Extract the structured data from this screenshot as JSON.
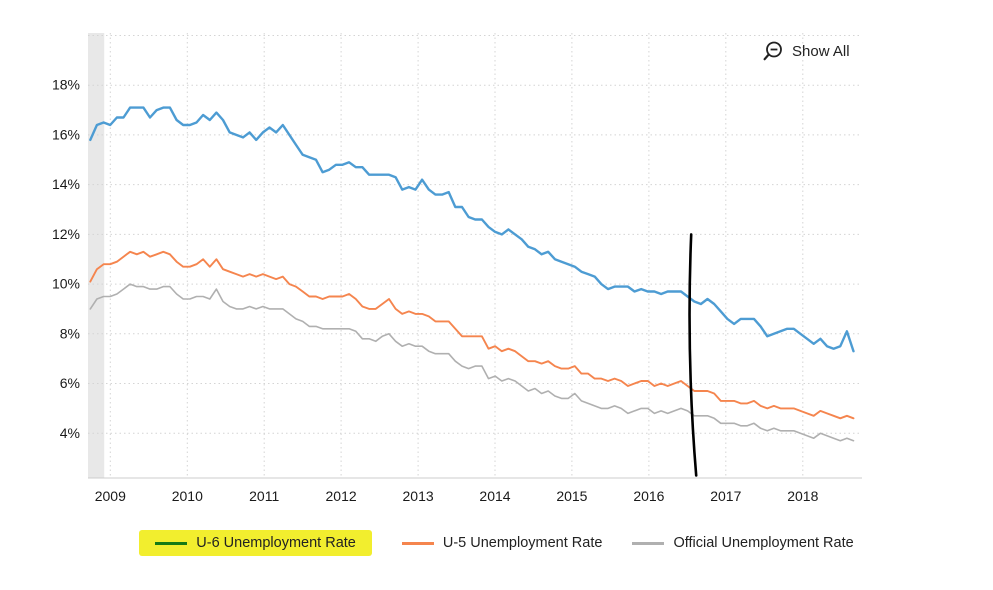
{
  "toolbar": {
    "show_all": "Show All"
  },
  "legend": {
    "highlight_color": "#f2ee2e",
    "items": [
      {
        "label": "U-6 Unemployment Rate",
        "swatch_color": "#157a15",
        "highlighted": true
      },
      {
        "label": "U-5 Unemployment Rate",
        "swatch_color": "#f5854e",
        "highlighted": false
      },
      {
        "label": "Official Unemployment Rate",
        "swatch_color": "#b0b0b0",
        "highlighted": false
      }
    ]
  },
  "chart_data": {
    "type": "line",
    "title": "",
    "x_axis": {
      "tick_labels": [
        "2009",
        "2010",
        "2011",
        "2012",
        "2013",
        "2014",
        "2015",
        "2016",
        "2017",
        "2018"
      ],
      "tick_positions": [
        2009,
        2010,
        2011,
        2012,
        2013,
        2014,
        2015,
        2016,
        2017,
        2018
      ],
      "range": [
        2008.71,
        2018.77
      ]
    },
    "y_axis": {
      "tick_labels": [
        "4%",
        "6%",
        "8%",
        "10%",
        "12%",
        "14%",
        "16%",
        "18%"
      ],
      "tick_values": [
        4,
        6,
        8,
        10,
        12,
        14,
        16,
        18
      ],
      "grid_values": [
        4,
        6,
        8,
        10,
        12,
        14,
        16,
        18,
        20
      ],
      "range": [
        2.2,
        20.1
      ]
    },
    "x_start": 2008.74,
    "x_end": 2018.66,
    "sampling": "monthly",
    "left_band": {
      "x_from": 2008.71,
      "x_to": 2008.92,
      "color": "#e8e8e8"
    },
    "annotation_line": {
      "x": 2016.55,
      "y_top": 12.0,
      "y_bottom": 2.3,
      "color": "#000000"
    },
    "series": [
      {
        "name": "U-6 Unemployment Rate",
        "color": "#4d9cd3",
        "values": [
          15.8,
          16.4,
          16.5,
          16.4,
          16.7,
          16.7,
          17.1,
          17.1,
          17.1,
          16.7,
          17.0,
          17.1,
          17.1,
          16.6,
          16.4,
          16.4,
          16.5,
          16.8,
          16.6,
          16.9,
          16.6,
          16.1,
          16.0,
          15.9,
          16.1,
          15.8,
          16.1,
          16.3,
          16.1,
          16.4,
          16.0,
          15.6,
          15.2,
          15.1,
          15.0,
          14.5,
          14.6,
          14.8,
          14.8,
          14.9,
          14.7,
          14.7,
          14.4,
          14.4,
          14.4,
          14.4,
          14.3,
          13.8,
          13.9,
          13.8,
          14.2,
          13.8,
          13.6,
          13.6,
          13.7,
          13.1,
          13.1,
          12.7,
          12.6,
          12.6,
          12.3,
          12.1,
          12.0,
          12.2,
          12.0,
          11.8,
          11.5,
          11.4,
          11.2,
          11.3,
          11.0,
          10.9,
          10.8,
          10.7,
          10.5,
          10.4,
          10.3,
          10.0,
          9.8,
          9.9,
          9.9,
          9.9,
          9.7,
          9.8,
          9.7,
          9.7,
          9.6,
          9.7,
          9.7,
          9.7,
          9.5,
          9.3,
          9.2,
          9.4,
          9.2,
          8.9,
          8.6,
          8.4,
          8.6,
          8.6,
          8.6,
          8.3,
          7.9,
          8.0,
          8.1,
          8.2,
          8.2,
          8.0,
          7.8,
          7.6,
          7.8,
          7.5,
          7.4,
          7.5,
          8.1,
          7.3
        ]
      },
      {
        "name": "U-5 Unemployment Rate",
        "color": "#f5854e",
        "values": [
          10.1,
          10.6,
          10.8,
          10.8,
          10.9,
          11.1,
          11.3,
          11.2,
          11.3,
          11.1,
          11.2,
          11.3,
          11.2,
          10.9,
          10.7,
          10.7,
          10.8,
          11.0,
          10.7,
          11.0,
          10.6,
          10.5,
          10.4,
          10.3,
          10.4,
          10.3,
          10.4,
          10.3,
          10.2,
          10.3,
          10.0,
          9.9,
          9.7,
          9.5,
          9.5,
          9.4,
          9.5,
          9.5,
          9.5,
          9.6,
          9.4,
          9.1,
          9.0,
          9.0,
          9.2,
          9.4,
          9.0,
          8.8,
          8.9,
          8.8,
          8.8,
          8.7,
          8.5,
          8.5,
          8.5,
          8.2,
          7.9,
          7.9,
          7.9,
          7.9,
          7.4,
          7.5,
          7.3,
          7.4,
          7.3,
          7.1,
          6.9,
          6.9,
          6.8,
          6.9,
          6.7,
          6.6,
          6.6,
          6.7,
          6.4,
          6.4,
          6.2,
          6.2,
          6.1,
          6.2,
          6.1,
          5.9,
          6.0,
          6.1,
          6.1,
          5.9,
          6.0,
          5.9,
          6.0,
          6.1,
          5.9,
          5.7,
          5.7,
          5.7,
          5.6,
          5.3,
          5.3,
          5.3,
          5.2,
          5.2,
          5.3,
          5.1,
          5.0,
          5.1,
          5.0,
          5.0,
          5.0,
          4.9,
          4.8,
          4.7,
          4.9,
          4.8,
          4.7,
          4.6,
          4.7,
          4.6
        ]
      },
      {
        "name": "Official Unemployment Rate",
        "color": "#b0b0b0",
        "values": [
          9.0,
          9.4,
          9.5,
          9.5,
          9.6,
          9.8,
          10.0,
          9.9,
          9.9,
          9.8,
          9.8,
          9.9,
          9.9,
          9.6,
          9.4,
          9.4,
          9.5,
          9.5,
          9.4,
          9.8,
          9.3,
          9.1,
          9.0,
          9.0,
          9.1,
          9.0,
          9.1,
          9.0,
          9.0,
          9.0,
          8.8,
          8.6,
          8.5,
          8.3,
          8.3,
          8.2,
          8.2,
          8.2,
          8.2,
          8.2,
          8.1,
          7.8,
          7.8,
          7.7,
          7.9,
          8.0,
          7.7,
          7.5,
          7.6,
          7.5,
          7.5,
          7.3,
          7.2,
          7.2,
          7.2,
          6.9,
          6.7,
          6.6,
          6.7,
          6.7,
          6.2,
          6.3,
          6.1,
          6.2,
          6.1,
          5.9,
          5.7,
          5.8,
          5.6,
          5.7,
          5.5,
          5.4,
          5.4,
          5.6,
          5.3,
          5.2,
          5.1,
          5.0,
          5.0,
          5.1,
          5.0,
          4.8,
          4.9,
          5.0,
          5.0,
          4.8,
          4.9,
          4.8,
          4.9,
          5.0,
          4.9,
          4.7,
          4.7,
          4.7,
          4.6,
          4.4,
          4.4,
          4.4,
          4.3,
          4.3,
          4.4,
          4.2,
          4.1,
          4.2,
          4.1,
          4.1,
          4.1,
          4.0,
          3.9,
          3.8,
          4.0,
          3.9,
          3.8,
          3.7,
          3.8,
          3.7
        ]
      }
    ]
  }
}
